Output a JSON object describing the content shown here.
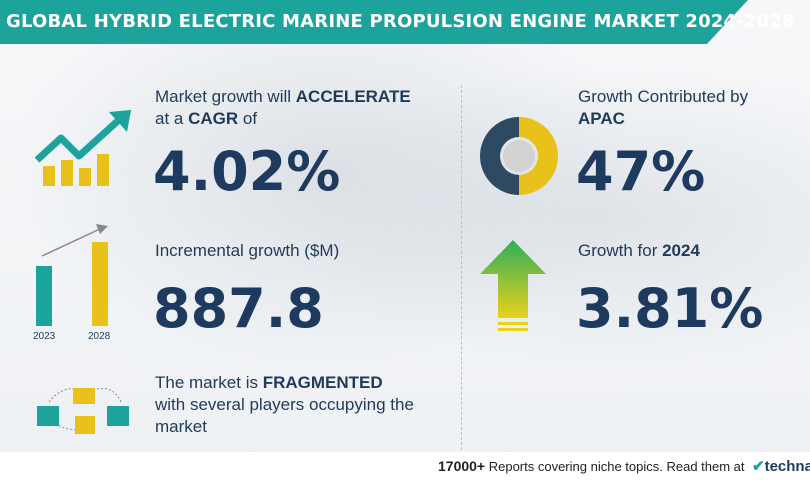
{
  "banner": {
    "title": "GLOBAL HYBRID ELECTRIC MARINE PROPULSION ENGINE MARKET 2024-2028"
  },
  "cagr": {
    "label_pre": "Market growth will ",
    "label_bold": "ACCELERATE",
    "label_line2_pre": "at a ",
    "label_line2_bold": "CAGR",
    "label_line2_post": "  of",
    "value": "4.02%",
    "icon": "trending-up-chart-icon"
  },
  "incremental": {
    "label": "Incremental growth ($M)",
    "value": "887.8",
    "bar_labels": [
      "2023",
      "2028"
    ],
    "icon": "bar-growth-icon"
  },
  "fragmented": {
    "line1_pre": "The market is ",
    "line1_bold": "FRAGMENTED",
    "line2": "with several players occupying the",
    "line3": "market",
    "icon": "buildings-network-icon"
  },
  "apac": {
    "label_line1": "Growth Contributed by",
    "label_line2": "APAC",
    "value": "47%",
    "icon": "donut-chart-icon"
  },
  "growth2024": {
    "label_pre": "Growth for ",
    "label_bold": "2024",
    "value": "3.81%",
    "icon": "up-arrow-icon"
  },
  "footer": {
    "count": "17000+",
    "text": " Reports covering niche topics. Read them at",
    "logo_mark": "✔",
    "logo_text": "technav"
  },
  "colors": {
    "teal": "#1ba39c",
    "navy": "#1e3a5f",
    "yellow": "#e8c21a",
    "green_arrow": "#2fae5a"
  }
}
